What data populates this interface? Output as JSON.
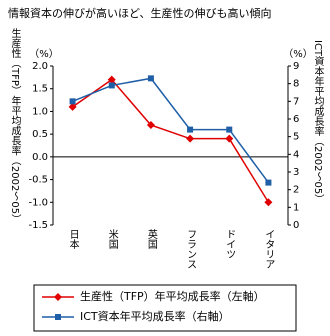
{
  "chart_data": {
    "type": "line",
    "title": "情報資本の伸びが高いほど、生産性の伸びも高い傾向",
    "y_label": "生産性（TFP）年平均成長率（2002～05）",
    "y2_label": "ICT資本年平均成長率（2002～05）",
    "y_unit": "（%）",
    "y2_unit": "（%）",
    "categories": [
      "日本",
      "米国",
      "英国",
      "フランス",
      "ドイツ",
      "イタリア"
    ],
    "series": [
      {
        "name": "生産性（TFP）年平均成長率（左軸）",
        "color": "#e00000",
        "marker": "diamond",
        "values": [
          1.1,
          1.7,
          0.7,
          0.4,
          0.4,
          -1.0
        ]
      },
      {
        "name": "ICT資本年平均成長率（右軸）",
        "color": "#1f5fa8",
        "marker": "square",
        "axis": "y2",
        "values": [
          7.0,
          7.9,
          8.3,
          5.4,
          5.4,
          2.4
        ]
      }
    ],
    "ylim": [
      -1.5,
      2.0
    ],
    "yticks": [
      {
        "value": 2.0,
        "label": "2.0"
      },
      {
        "value": 1.5,
        "label": "1.5"
      },
      {
        "value": 1.0,
        "label": "1.0"
      },
      {
        "value": 0.5,
        "label": "0.5"
      },
      {
        "value": 0.0,
        "label": "0.0"
      },
      {
        "value": -0.5,
        "label": "-0.5"
      },
      {
        "value": -1.0,
        "label": "-1.0"
      },
      {
        "value": -1.5,
        "label": "-1.5"
      }
    ],
    "y2lim": [
      0,
      9
    ],
    "y2ticks": [
      0,
      1,
      2,
      3,
      4,
      5,
      6,
      7,
      8,
      9
    ],
    "legend": "bottom"
  }
}
